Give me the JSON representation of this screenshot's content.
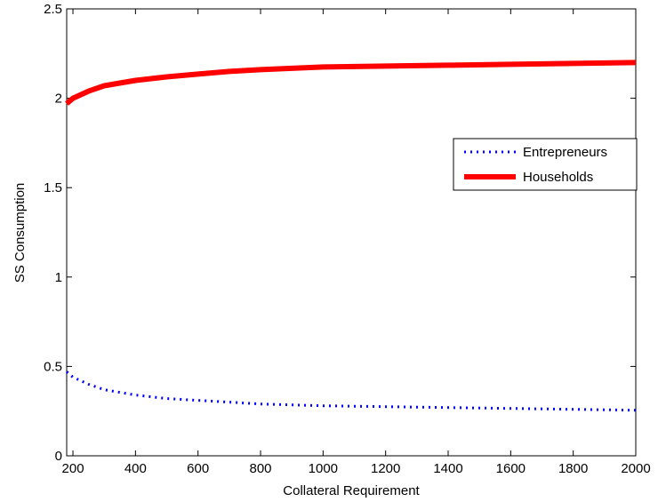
{
  "chart_data": {
    "type": "line",
    "xlabel": "Collateral Requirement",
    "ylabel": "SS Consumption",
    "xlim": [
      180,
      2000
    ],
    "ylim": [
      0,
      2.5
    ],
    "xticks": [
      200,
      400,
      600,
      800,
      1000,
      1200,
      1400,
      1600,
      1800,
      2000
    ],
    "yticks": [
      0,
      0.5,
      1,
      1.5,
      2,
      2.5
    ],
    "xtick_labels": [
      "200",
      "400",
      "600",
      "800",
      "1000",
      "1200",
      "1400",
      "1600",
      "1800",
      "2000"
    ],
    "ytick_labels": [
      "0",
      "0.5",
      "1",
      "1.5",
      "2",
      "2.5"
    ],
    "grid": false,
    "legend_position": "right",
    "series": [
      {
        "name": "Entrepreneurs",
        "color": "#0000ff",
        "style": "dotted",
        "x": [
          180,
          200,
          250,
          300,
          400,
          500,
          600,
          700,
          800,
          1000,
          1200,
          1400,
          1600,
          1800,
          2000
        ],
        "y": [
          0.47,
          0.44,
          0.4,
          0.37,
          0.34,
          0.32,
          0.31,
          0.3,
          0.29,
          0.28,
          0.275,
          0.27,
          0.265,
          0.26,
          0.255
        ]
      },
      {
        "name": "Households",
        "color": "#ff0000",
        "style": "solid",
        "x": [
          180,
          200,
          250,
          300,
          400,
          500,
          600,
          700,
          800,
          1000,
          1200,
          1400,
          1600,
          1800,
          2000
        ],
        "y": [
          1.97,
          2.0,
          2.04,
          2.07,
          2.1,
          2.12,
          2.135,
          2.15,
          2.16,
          2.175,
          2.18,
          2.185,
          2.19,
          2.195,
          2.2
        ]
      }
    ]
  }
}
